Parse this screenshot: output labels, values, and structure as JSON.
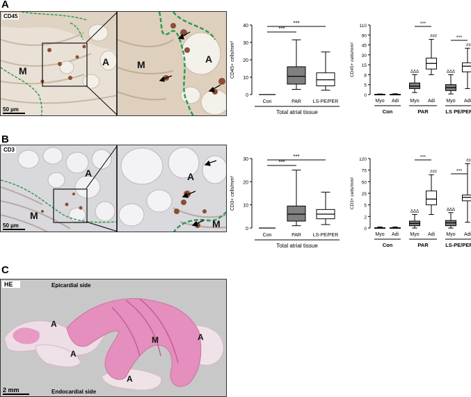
{
  "panels": {
    "A": {
      "label": "A",
      "micrograph_tag": "CD45",
      "regions": [
        "M",
        "A",
        "M",
        "A"
      ],
      "scale": "50 µm",
      "chart_total": {
        "type": "box",
        "ylabel": "CD45+ cells/mm²",
        "yticks": [
          "0",
          "10",
          "20",
          "30",
          "40"
        ],
        "ylim": [
          0,
          40
        ],
        "categories": [
          "Con",
          "PAR",
          "LS-PE/PER"
        ],
        "group_label": "Total atrial tissue",
        "sig": [
          "***",
          "***"
        ],
        "boxes": [
          {
            "name": "Con",
            "min": 0,
            "q1": 0,
            "median": 0,
            "q3": 0,
            "max": 0,
            "fill": "#ffffff"
          },
          {
            "name": "PAR",
            "min": 3,
            "q1": 6,
            "median": 10.5,
            "q3": 16,
            "max": 31.5,
            "fill": "#808080"
          },
          {
            "name": "LS-PE/PER",
            "min": 2.5,
            "q1": 5,
            "median": 8.5,
            "q3": 12.5,
            "max": 24.5,
            "fill": "#ffffff"
          }
        ]
      },
      "chart_sub": {
        "type": "box",
        "ylabel": "CD45+ cells/mm²",
        "yticks": [
          "0",
          "5",
          "8",
          "15",
          "30",
          "45",
          "90",
          "110"
        ],
        "categories": [
          "Myo",
          "Adi",
          "Myo",
          "Adi",
          "Myo",
          "Adi"
        ],
        "groups": [
          "Con",
          "PAR",
          "LS PE/PER"
        ],
        "sig": [
          "***",
          "###",
          "***",
          "###"
        ],
        "triangles": [
          "ΔΔΔ",
          "ΔΔΔ"
        ],
        "boxes": [
          {
            "name": "Con Myo",
            "min": 0,
            "q1": 0,
            "median": 0,
            "q3": 0.1,
            "max": 0.3,
            "fill": "#ffffff"
          },
          {
            "name": "Con Adi",
            "min": 0,
            "q1": 0,
            "median": 0,
            "q3": 0.1,
            "max": 0.4,
            "fill": "#ffffff"
          },
          {
            "name": "PAR Myo",
            "min": 1,
            "q1": 3,
            "median": 4.2,
            "q3": 5.5,
            "max": 8,
            "fill": "#808080"
          },
          {
            "name": "PAR Adi",
            "min": 8,
            "q1": 12,
            "median": 17,
            "q3": 25,
            "max": 70,
            "fill": "#ffffff"
          },
          {
            "name": "LS Myo",
            "min": 0.3,
            "q1": 2,
            "median": 3.5,
            "q3": 5,
            "max": 8,
            "fill": "#808080"
          },
          {
            "name": "LS Adi",
            "min": 3,
            "q1": 10,
            "median": 14,
            "q3": 18,
            "max": 40,
            "fill": "#ffffff"
          }
        ]
      }
    },
    "B": {
      "label": "B",
      "micrograph_tag": "CD3",
      "regions": [
        "A",
        "M",
        "A",
        "M"
      ],
      "scale": "50 µm",
      "chart_total": {
        "type": "box",
        "ylabel": "CD3+ cells/mm²",
        "yticks": [
          "0",
          "10",
          "20",
          "30"
        ],
        "ylim": [
          0,
          30
        ],
        "categories": [
          "Con",
          "PAR",
          "LS-PE/PER"
        ],
        "group_label": "Total atrial tissue",
        "sig": [
          "***",
          "***"
        ],
        "boxes": [
          {
            "name": "Con",
            "min": 0,
            "q1": 0,
            "median": 0,
            "q3": 0,
            "max": 0,
            "fill": "#ffffff"
          },
          {
            "name": "PAR",
            "min": 1,
            "q1": 3,
            "median": 6,
            "q3": 9.5,
            "max": 25,
            "fill": "#808080"
          },
          {
            "name": "LS-PE/PER",
            "min": 1.5,
            "q1": 4,
            "median": 6,
            "q3": 8,
            "max": 15.5,
            "fill": "#ffffff"
          }
        ]
      },
      "chart_sub": {
        "type": "box",
        "ylabel": "CD3+ cells/mm²",
        "yticks": [
          "0",
          "2",
          "5",
          "25",
          "50",
          "75",
          "120"
        ],
        "categories": [
          "Myo",
          "Adi",
          "Myo",
          "Adi",
          "Myo",
          "Adi"
        ],
        "groups": [
          "Con",
          "PAR",
          "LS-PE/PER"
        ],
        "sig": [
          "***",
          "###",
          "***",
          "###"
        ],
        "triangles": [
          "ΔΔΔ",
          "ΔΔΔ"
        ],
        "boxes": [
          {
            "name": "Con Myo",
            "min": 0,
            "q1": 0,
            "median": 0,
            "q3": 0.05,
            "max": 0.2,
            "fill": "#ffffff"
          },
          {
            "name": "Con Adi",
            "min": 0,
            "q1": 0,
            "median": 0,
            "q3": 0.05,
            "max": 0.2,
            "fill": "#ffffff"
          },
          {
            "name": "PAR Myo",
            "min": 0,
            "q1": 0.4,
            "median": 0.8,
            "q3": 1.2,
            "max": 2.5,
            "fill": "#808080"
          },
          {
            "name": "PAR Adi",
            "min": 2.5,
            "q1": 5,
            "median": 15,
            "q3": 30,
            "max": 65,
            "fill": "#ffffff"
          },
          {
            "name": "LS Myo",
            "min": 0,
            "q1": 0.4,
            "median": 0.9,
            "q3": 1.3,
            "max": 3,
            "fill": "#808080"
          },
          {
            "name": "LS Adi",
            "min": 1,
            "q1": 12,
            "median": 18,
            "q3": 22,
            "max": 100,
            "fill": "#ffffff"
          }
        ]
      }
    },
    "C": {
      "label": "C",
      "tag": "HE",
      "epi": "Epicardial side",
      "endo": "Endocardial side",
      "regions": [
        "A",
        "M",
        "A",
        "A",
        "A"
      ],
      "scale": "2 mm"
    }
  }
}
